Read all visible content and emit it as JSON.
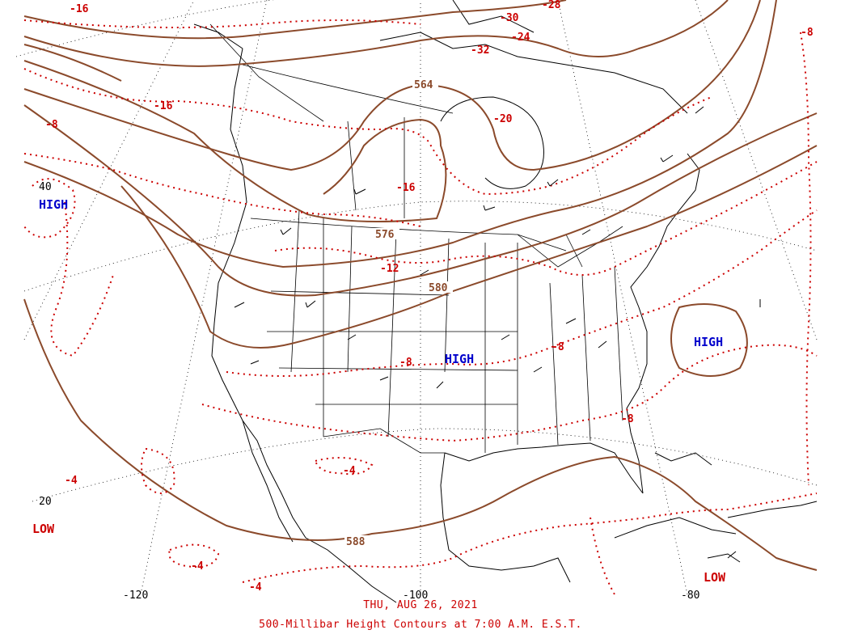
{
  "map": {
    "caption_date": "THU, AUG 26, 2021",
    "caption_title": "500-Millibar Height Contours at 7:00 A.M. E.S.T.",
    "longitude_labels": [
      "-120",
      "-100",
      "-80"
    ],
    "latitude_labels": [
      "40",
      "20"
    ],
    "height_contour_labels": [
      "564",
      "576",
      "580",
      "588"
    ],
    "temperature_labels": [
      "-16",
      "-24",
      "-28",
      "-30",
      "-32",
      "-20",
      "-8",
      "-16",
      "-16",
      "-12",
      "-8",
      "-8",
      "-8",
      "-8",
      "-4",
      "-4",
      "-4",
      "-4"
    ],
    "pressure_centers": [
      {
        "label": "HIGH",
        "type": "high"
      },
      {
        "label": "HIGH",
        "type": "high"
      },
      {
        "label": "HIGH",
        "type": "high"
      },
      {
        "label": "LOW",
        "type": "low"
      },
      {
        "label": "LOW",
        "type": "low"
      }
    ],
    "colors": {
      "height_contour": "#8b4a2b",
      "temperature_contour": "#cc0000",
      "high_label": "#0000cc",
      "low_label": "#cc0000",
      "coastline": "#000000"
    }
  }
}
